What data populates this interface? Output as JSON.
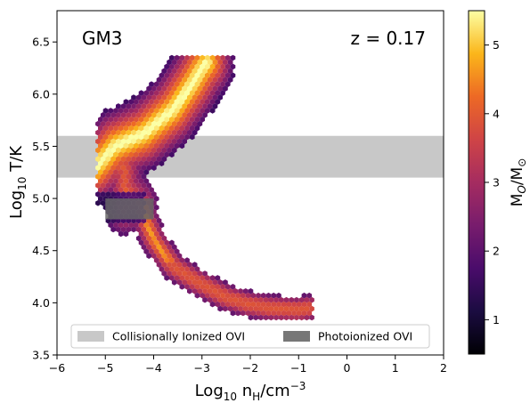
{
  "chart_data": {
    "type": "hexbin",
    "title_left": "GM3",
    "title_right": "z = 0.17",
    "xlabel_main": "Log",
    "xlabel_sub": "10",
    "xlabel_rest": " n",
    "xlabel_sub2": "H",
    "xlabel_unit": "/cm",
    "xlabel_sup": "−3",
    "ylabel_main": "Log",
    "ylabel_sub": "10",
    "ylabel_rest": " T/K",
    "xlim": [
      -6,
      2
    ],
    "ylim": [
      3.5,
      6.8
    ],
    "xticks": [
      -6,
      -5,
      -4,
      -3,
      -2,
      -1,
      0,
      1,
      2
    ],
    "xtick_labels": [
      "−6",
      "−5",
      "−4",
      "−3",
      "−2",
      "−1",
      "0",
      "1",
      "2"
    ],
    "yticks": [
      3.5,
      4.0,
      4.5,
      5.0,
      5.5,
      6.0,
      6.5
    ],
    "ytick_labels": [
      "3.5",
      "4.0",
      "4.5",
      "5.0",
      "5.5",
      "6.0",
      "6.5"
    ],
    "colorbar": {
      "label_main": "M",
      "label_sub": "O",
      "label_mid": "/M",
      "label_sub2": "⊙",
      "range": [
        0.5,
        5.5
      ],
      "ticks": [
        1,
        2,
        3,
        4,
        5
      ],
      "tick_labels": [
        "1",
        "2",
        "3",
        "4",
        "5"
      ],
      "colormap": "inferno"
    },
    "regions": [
      {
        "name": "Collisionally Ionized OVI",
        "x": [
          -6,
          2
        ],
        "y": [
          5.2,
          5.6
        ],
        "color": "#c8c8c8"
      },
      {
        "name": "Photoionized OVI",
        "x": [
          -5,
          -4
        ],
        "y": [
          4.8,
          5.0
        ],
        "color": "#666666"
      }
    ],
    "legend": {
      "position": "lower-center",
      "items": [
        "Collisionally Ionized OVI",
        "Photoionized OVI"
      ]
    },
    "grid": false
  }
}
